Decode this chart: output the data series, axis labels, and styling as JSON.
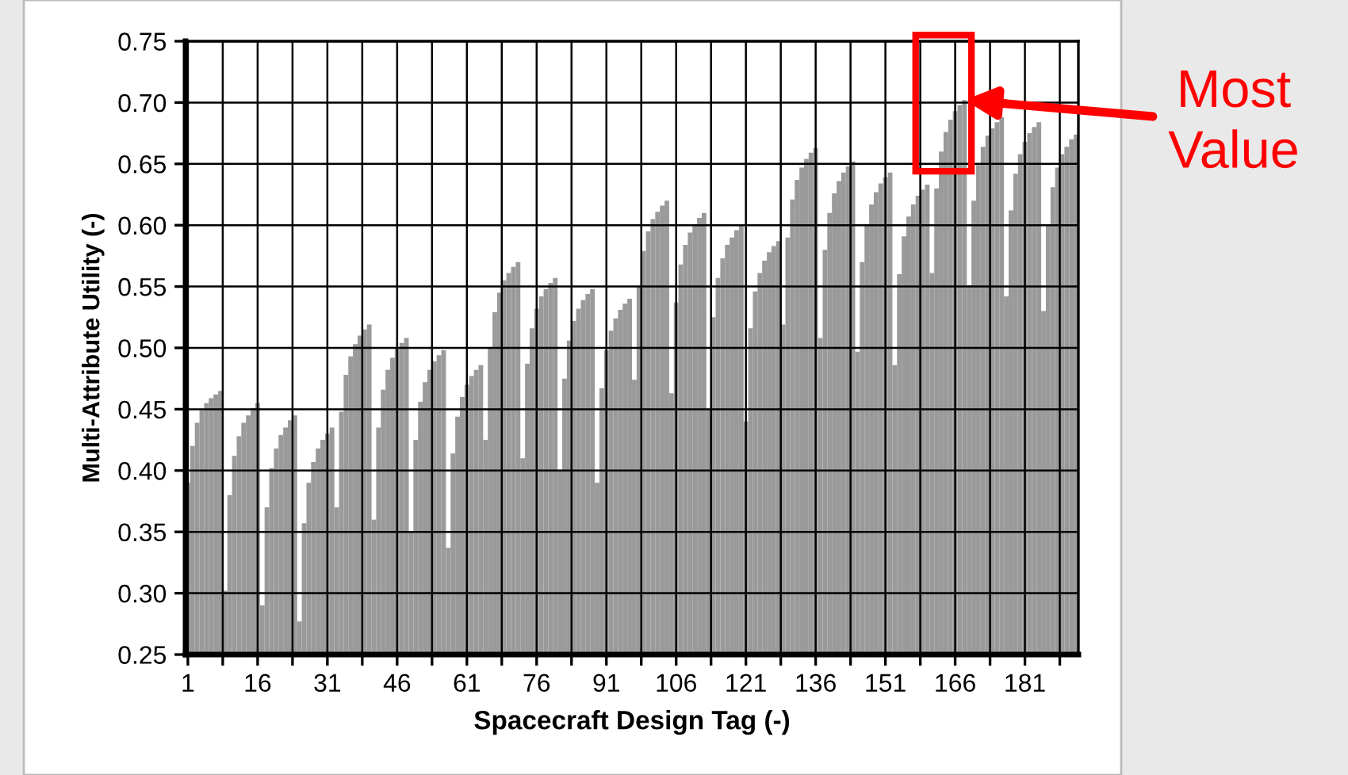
{
  "chart_data": {
    "type": "bar",
    "xlabel": "Spacecraft Design Tag (-)",
    "ylabel": "Multi-Attribute Utility (-)",
    "x": [
      1,
      2,
      3,
      4,
      5,
      6,
      7,
      8,
      9,
      10,
      11,
      12,
      13,
      14,
      15,
      16,
      17,
      18,
      19,
      20,
      21,
      22,
      23,
      24,
      25,
      26,
      27,
      28,
      29,
      30,
      31,
      32,
      33,
      34,
      35,
      36,
      37,
      38,
      39,
      40,
      41,
      42,
      43,
      44,
      45,
      46,
      47,
      48,
      49,
      50,
      51,
      52,
      53,
      54,
      55,
      56,
      57,
      58,
      59,
      60,
      61,
      62,
      63,
      64,
      65,
      66,
      67,
      68,
      69,
      70,
      71,
      72,
      73,
      74,
      75,
      76,
      77,
      78,
      79,
      80,
      81,
      82,
      83,
      84,
      85,
      86,
      87,
      88,
      89,
      90,
      91,
      92,
      93,
      94,
      95,
      96,
      97,
      98,
      99,
      100,
      101,
      102,
      103,
      104,
      105,
      106,
      107,
      108,
      109,
      110,
      111,
      112,
      113,
      114,
      115,
      116,
      117,
      118,
      119,
      120,
      121,
      122,
      123,
      124,
      125,
      126,
      127,
      128,
      129,
      130,
      131,
      132,
      133,
      134,
      135,
      136,
      137,
      138,
      139,
      140,
      141,
      142,
      143,
      144,
      145,
      146,
      147,
      148,
      149,
      150,
      151,
      152,
      153,
      154,
      155,
      156,
      157,
      158,
      159,
      160,
      161,
      162,
      163,
      164,
      165,
      166,
      167,
      168,
      169,
      170,
      171,
      172,
      173,
      174,
      175,
      176,
      177,
      178,
      179,
      180,
      181,
      182,
      183,
      184,
      185,
      186,
      187,
      188,
      189,
      190,
      191,
      192
    ],
    "values": [
      0.39,
      0.42,
      0.439,
      0.449,
      0.455,
      0.459,
      0.462,
      0.465,
      0.302,
      0.38,
      0.412,
      0.428,
      0.439,
      0.445,
      0.451,
      0.455,
      0.29,
      0.37,
      0.402,
      0.418,
      0.429,
      0.435,
      0.441,
      0.445,
      0.277,
      0.357,
      0.39,
      0.407,
      0.418,
      0.425,
      0.43,
      0.435,
      0.37,
      0.448,
      0.478,
      0.493,
      0.503,
      0.51,
      0.515,
      0.519,
      0.36,
      0.435,
      0.466,
      0.482,
      0.492,
      0.499,
      0.504,
      0.508,
      0.35,
      0.425,
      0.456,
      0.472,
      0.482,
      0.489,
      0.494,
      0.498,
      0.337,
      0.414,
      0.444,
      0.46,
      0.47,
      0.477,
      0.482,
      0.486,
      0.425,
      0.5,
      0.529,
      0.545,
      0.555,
      0.561,
      0.566,
      0.57,
      0.41,
      0.487,
      0.516,
      0.532,
      0.542,
      0.548,
      0.553,
      0.557,
      0.4,
      0.475,
      0.506,
      0.522,
      0.532,
      0.539,
      0.544,
      0.548,
      0.39,
      0.467,
      0.498,
      0.514,
      0.524,
      0.531,
      0.536,
      0.54,
      0.474,
      0.55,
      0.579,
      0.595,
      0.605,
      0.611,
      0.616,
      0.62,
      0.463,
      0.537,
      0.568,
      0.584,
      0.594,
      0.601,
      0.606,
      0.61,
      0.45,
      0.525,
      0.557,
      0.573,
      0.584,
      0.59,
      0.596,
      0.6,
      0.44,
      0.516,
      0.546,
      0.561,
      0.571,
      0.578,
      0.583,
      0.587,
      0.519,
      0.59,
      0.621,
      0.637,
      0.647,
      0.654,
      0.659,
      0.663,
      0.508,
      0.58,
      0.61,
      0.626,
      0.636,
      0.643,
      0.648,
      0.652,
      0.497,
      0.57,
      0.601,
      0.617,
      0.627,
      0.634,
      0.639,
      0.643,
      0.486,
      0.56,
      0.591,
      0.607,
      0.617,
      0.624,
      0.629,
      0.633,
      0.561,
      0.63,
      0.66,
      0.676,
      0.686,
      0.693,
      0.698,
      0.702,
      0.551,
      0.62,
      0.649,
      0.664,
      0.673,
      0.679,
      0.684,
      0.688,
      0.542,
      0.612,
      0.642,
      0.658,
      0.668,
      0.675,
      0.68,
      0.684,
      0.53,
      0.6,
      0.631,
      0.647,
      0.658,
      0.664,
      0.67,
      0.674
    ],
    "color": "#9a9a9a",
    "xlim": [
      0.5,
      192.5
    ],
    "xticks": [
      {
        "value": 1,
        "label": "1"
      },
      {
        "value": 8.5,
        "label": null
      },
      {
        "value": 16,
        "label": "16"
      },
      {
        "value": 23.5,
        "label": null
      },
      {
        "value": 31,
        "label": "31"
      },
      {
        "value": 38.5,
        "label": null
      },
      {
        "value": 46,
        "label": "46"
      },
      {
        "value": 53.5,
        "label": null
      },
      {
        "value": 61,
        "label": "61"
      },
      {
        "value": 68.5,
        "label": null
      },
      {
        "value": 76,
        "label": "76"
      },
      {
        "value": 83.5,
        "label": null
      },
      {
        "value": 91,
        "label": "91"
      },
      {
        "value": 98.5,
        "label": null
      },
      {
        "value": 106,
        "label": "106"
      },
      {
        "value": 113.5,
        "label": null
      },
      {
        "value": 121,
        "label": "121"
      },
      {
        "value": 128.5,
        "label": null
      },
      {
        "value": 136,
        "label": "136"
      },
      {
        "value": 143.5,
        "label": null
      },
      {
        "value": 151,
        "label": "151"
      },
      {
        "value": 158.5,
        "label": null
      },
      {
        "value": 166,
        "label": "166"
      },
      {
        "value": 173.5,
        "label": null
      },
      {
        "value": 181,
        "label": "181"
      },
      {
        "value": 188.5,
        "label": null
      }
    ],
    "ylim": [
      0.25,
      0.75
    ],
    "yticks": [
      {
        "value": 0.25,
        "label": "0.25"
      },
      {
        "value": 0.3,
        "label": "0.30"
      },
      {
        "value": 0.35,
        "label": "0.35"
      },
      {
        "value": 0.4,
        "label": "0.40"
      },
      {
        "value": 0.45,
        "label": "0.45"
      },
      {
        "value": 0.5,
        "label": "0.50"
      },
      {
        "value": 0.55,
        "label": "0.55"
      },
      {
        "value": 0.6,
        "label": "0.60"
      },
      {
        "value": 0.65,
        "label": "0.65"
      },
      {
        "value": 0.7,
        "label": "0.70"
      },
      {
        "value": 0.75,
        "label": "0.75"
      }
    ],
    "grid": true,
    "annotations": [
      {
        "text": "Most\nValue",
        "x": 168,
        "y": 0.702
      }
    ]
  }
}
